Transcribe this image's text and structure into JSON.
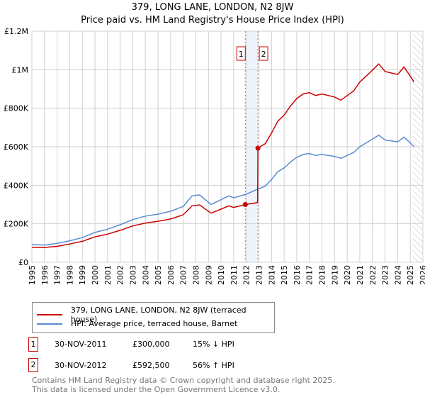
{
  "title": "379, LONG LANE, LONDON, N2 8JW",
  "subtitle": "Price paid vs. HM Land Registry's House Price Index (HPI)",
  "chart_data": {
    "type": "line",
    "title": "379, LONG LANE, LONDON, N2 8JW",
    "subtitle": "Price paid vs. HM Land Registry's House Price Index (HPI)",
    "xlim": [
      1995,
      2026
    ],
    "ylim": [
      0,
      1200000
    ],
    "yticks": [
      {
        "v": 0,
        "label": "£0"
      },
      {
        "v": 200000,
        "label": "£200K"
      },
      {
        "v": 400000,
        "label": "£400K"
      },
      {
        "v": 600000,
        "label": "£600K"
      },
      {
        "v": 800000,
        "label": "£800K"
      },
      {
        "v": 1000000,
        "label": "£1M"
      },
      {
        "v": 1200000,
        "label": "£1.2M"
      }
    ],
    "xticks": [
      "1995",
      "1996",
      "1997",
      "1998",
      "1999",
      "2000",
      "2001",
      "2002",
      "2003",
      "2004",
      "2005",
      "2006",
      "2007",
      "2008",
      "2009",
      "2010",
      "2011",
      "2012",
      "2013",
      "2014",
      "2015",
      "2016",
      "2017",
      "2018",
      "2019",
      "2020",
      "2021",
      "2022",
      "2023",
      "2024",
      "2025",
      "2026"
    ],
    "grid": true,
    "series": [
      {
        "name": "379, LONG LANE, LONDON, N2 8JW (terraced house)",
        "color": "#cc0000",
        "x": [
          1995,
          1996,
          1997,
          1998,
          1999,
          2000,
          2001,
          2002,
          2003,
          2004,
          2005,
          2006,
          2007,
          2007.7,
          2008.3,
          2009.2,
          2010,
          2010.6,
          2011,
          2011.92,
          2012.9,
          2012.92,
          2013.5,
          2014,
          2014.5,
          2015,
          2015.5,
          2016,
          2016.5,
          2017,
          2017.5,
          2018,
          2018.5,
          2019,
          2019.5,
          2020,
          2020.5,
          2021,
          2021.5,
          2022,
          2022.5,
          2023,
          2023.5,
          2024,
          2024.5,
          2025,
          2025.3
        ],
        "y": [
          78000,
          77000,
          83000,
          95000,
          109000,
          132000,
          146000,
          166000,
          189000,
          204000,
          213000,
          225000,
          247000,
          293000,
          298000,
          255000,
          276000,
          293000,
          285000,
          300000,
          310000,
          592500,
          616000,
          671000,
          733000,
          764000,
          811000,
          850000,
          874000,
          881000,
          866000,
          874000,
          866000,
          858000,
          842000,
          866000,
          889000,
          936000,
          967000,
          998000,
          1030000,
          991000,
          983000,
          975000,
          1014000,
          967000,
          936000
        ]
      },
      {
        "name": "HPI: Average price, terraced house, Barnet",
        "color": "#5b8bd0",
        "x": [
          1995,
          1996,
          1997,
          1998,
          1999,
          2000,
          2001,
          2002,
          2003,
          2004,
          2005,
          2006,
          2007,
          2007.7,
          2008.3,
          2009.2,
          2010,
          2010.6,
          2011,
          2011.92,
          2012.92,
          2013.5,
          2014,
          2014.5,
          2015,
          2015.5,
          2016,
          2016.5,
          2017,
          2017.5,
          2018,
          2018.5,
          2019,
          2019.5,
          2020,
          2020.5,
          2021,
          2021.5,
          2022,
          2022.5,
          2023,
          2023.5,
          2024,
          2024.5,
          2025,
          2025.3
        ],
        "y": [
          92000,
          90000,
          98000,
          112000,
          128000,
          155000,
          172000,
          195000,
          222000,
          240000,
          250000,
          265000,
          290000,
          345000,
          350000,
          300000,
          325000,
          345000,
          335000,
          352000,
          380000,
          395000,
          430000,
          470000,
          490000,
          520000,
          545000,
          560000,
          565000,
          555000,
          560000,
          555000,
          550000,
          540000,
          555000,
          570000,
          600000,
          620000,
          640000,
          660000,
          635000,
          630000,
          625000,
          650000,
          620000,
          600000
        ]
      }
    ],
    "sales": [
      {
        "id": "1",
        "x": 2011.92,
        "y": 300000
      },
      {
        "id": "2",
        "x": 2012.92,
        "y": 592500
      }
    ],
    "projection_start": 2025.2
  },
  "legend": [
    "379, LONG LANE, LONDON, N2 8JW (terraced house)",
    "HPI: Average price, terraced house, Barnet"
  ],
  "table": [
    {
      "id": "1",
      "date": "30-NOV-2011",
      "price": "£300,000",
      "hpi": "15% ↓ HPI"
    },
    {
      "id": "2",
      "date": "30-NOV-2012",
      "price": "£592,500",
      "hpi": "56% ↑ HPI"
    }
  ],
  "footer": [
    "Contains HM Land Registry data © Crown copyright and database right 2025.",
    "This data is licensed under the Open Government Licence v3.0."
  ]
}
